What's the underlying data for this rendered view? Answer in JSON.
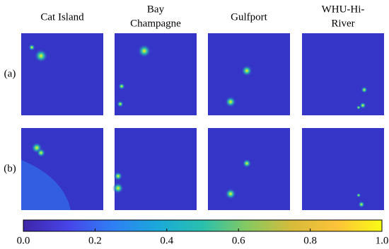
{
  "chart_data": {
    "type": "heatmap",
    "columns": [
      [
        "Cat Island"
      ],
      [
        "Bay",
        "Champagne"
      ],
      [
        "Gulfport"
      ],
      [
        "WHU-Hi-",
        "River"
      ]
    ],
    "rows": [
      "(a)",
      "(b)"
    ],
    "clim": [
      0,
      1
    ],
    "cticks": [
      {
        "value": 0,
        "label": "0.0"
      },
      0.2,
      0.4,
      0.6,
      {
        "value": 0.8,
        "label": "0.8"
      },
      {
        "value": 1,
        "label": "1.0"
      }
    ],
    "colormap": [
      "#3e26a8",
      "#4744e8",
      "#2f7ff5",
      "#1aa9d9",
      "#29c0ad",
      "#87c960",
      "#d7bb3a",
      "#fcc339",
      "#f9fb15"
    ]
  }
}
